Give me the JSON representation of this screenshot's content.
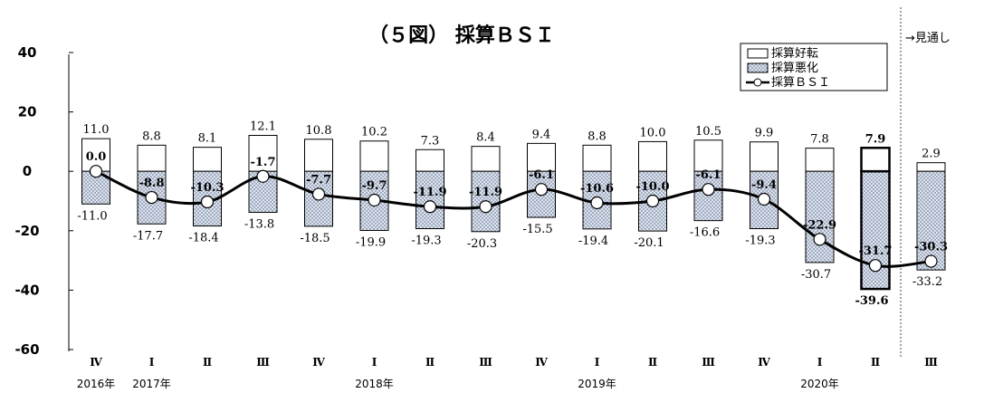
{
  "chart_data": {
    "type": "bar",
    "title": "（５図） 採算ＢＳＩ",
    "categories": [
      "Ⅳ",
      "Ⅰ",
      "Ⅱ",
      "Ⅲ",
      "Ⅳ",
      "Ⅰ",
      "Ⅱ",
      "Ⅲ",
      "Ⅳ",
      "Ⅰ",
      "Ⅱ",
      "Ⅲ",
      "Ⅳ",
      "Ⅰ",
      "Ⅱ",
      "Ⅲ"
    ],
    "year_labels": [
      {
        "index": 0,
        "label": "2016年"
      },
      {
        "index": 1,
        "label": "2017年"
      },
      {
        "index": 5,
        "label": "2018年"
      },
      {
        "index": 9,
        "label": "2019年"
      },
      {
        "index": 13,
        "label": "2020年"
      }
    ],
    "series": [
      {
        "name": "採算好転",
        "type": "bar",
        "values": [
          11.0,
          8.8,
          8.1,
          12.1,
          10.8,
          10.2,
          7.3,
          8.4,
          9.4,
          8.8,
          10.0,
          10.5,
          9.9,
          7.8,
          7.9,
          2.9
        ]
      },
      {
        "name": "採算悪化",
        "type": "bar",
        "values": [
          -11.0,
          -17.7,
          -18.4,
          -13.8,
          -18.5,
          -19.9,
          -19.3,
          -20.3,
          -15.5,
          -19.4,
          -20.1,
          -16.6,
          -19.3,
          -30.7,
          -39.6,
          -33.2
        ]
      },
      {
        "name": "採算ＢＳＩ",
        "type": "line",
        "values": [
          0.0,
          -8.8,
          -10.3,
          -1.7,
          -7.7,
          -9.7,
          -11.9,
          -11.9,
          -6.1,
          -10.6,
          -10.0,
          -6.1,
          -9.4,
          -22.9,
          -31.7,
          -30.3
        ]
      }
    ],
    "ylim": [
      -60,
      40
    ],
    "yticks": [
      40,
      20,
      0,
      -20,
      -40,
      -60
    ],
    "forecast_label": "→見通し",
    "forecast_start_index": 15,
    "highlight_index": 14,
    "legend_position": "top-right"
  }
}
